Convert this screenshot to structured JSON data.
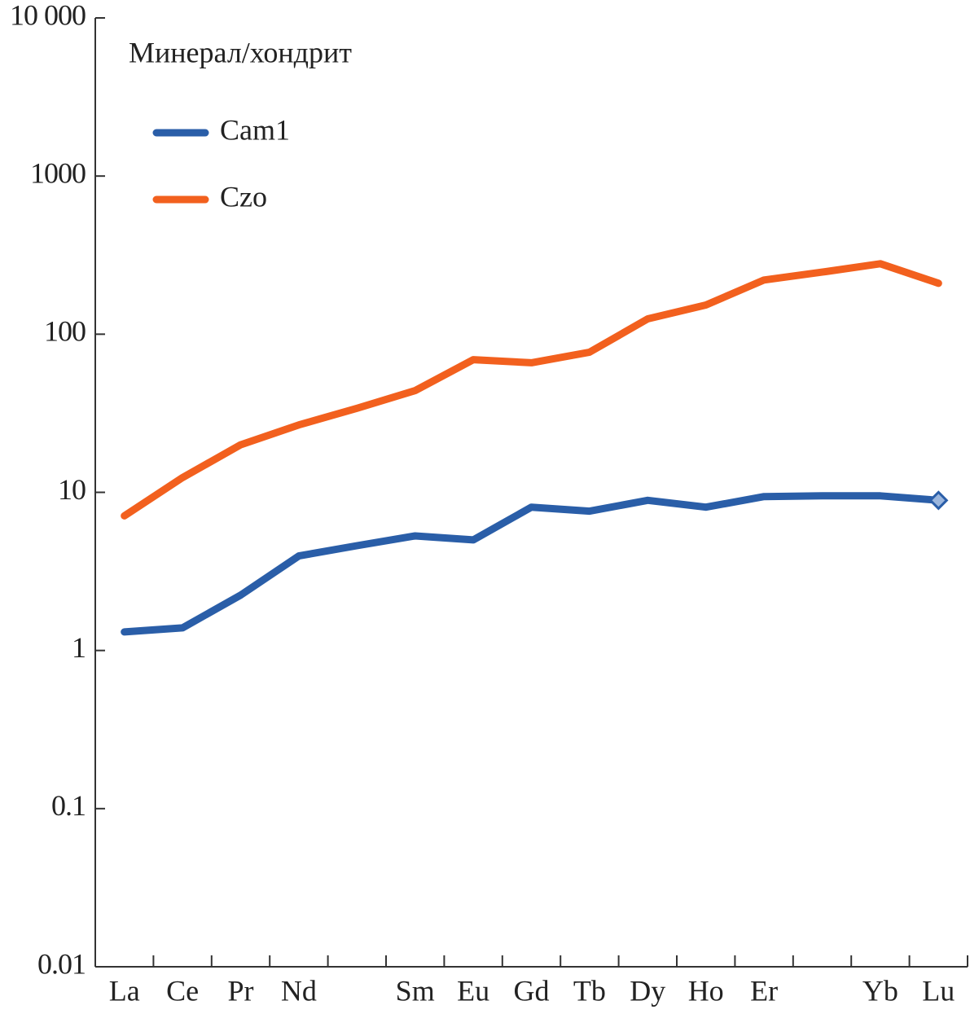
{
  "chart_data": {
    "type": "line",
    "ylabel": "Минерал/хондрит",
    "categories": [
      "La",
      "Ce",
      "Pr",
      "Nd",
      null,
      "Sm",
      "Eu",
      "Gd",
      "Tb",
      "Dy",
      "Ho",
      "Er",
      null,
      "Yb",
      "Lu"
    ],
    "series": [
      {
        "name": "Cam1",
        "color": "#2a5ea8",
        "values": [
          1.31,
          1.39,
          2.24,
          3.96,
          4.6,
          5.3,
          5.0,
          8.06,
          7.6,
          8.9,
          8.06,
          9.4,
          9.5,
          9.5,
          8.9
        ]
      },
      {
        "name": "Czo",
        "color": "#f2601e",
        "values": [
          7.1,
          12.4,
          20,
          26.7,
          34,
          44,
          69,
          66,
          77,
          125,
          153,
          220,
          247,
          279,
          210
        ]
      }
    ],
    "log_y": true,
    "ylim": [
      0.01,
      10000
    ],
    "yticks": [
      0.01,
      0.1,
      1,
      10,
      100,
      1000,
      {
        "value": 10000,
        "label": "10 000"
      }
    ],
    "legend": "upper left"
  }
}
